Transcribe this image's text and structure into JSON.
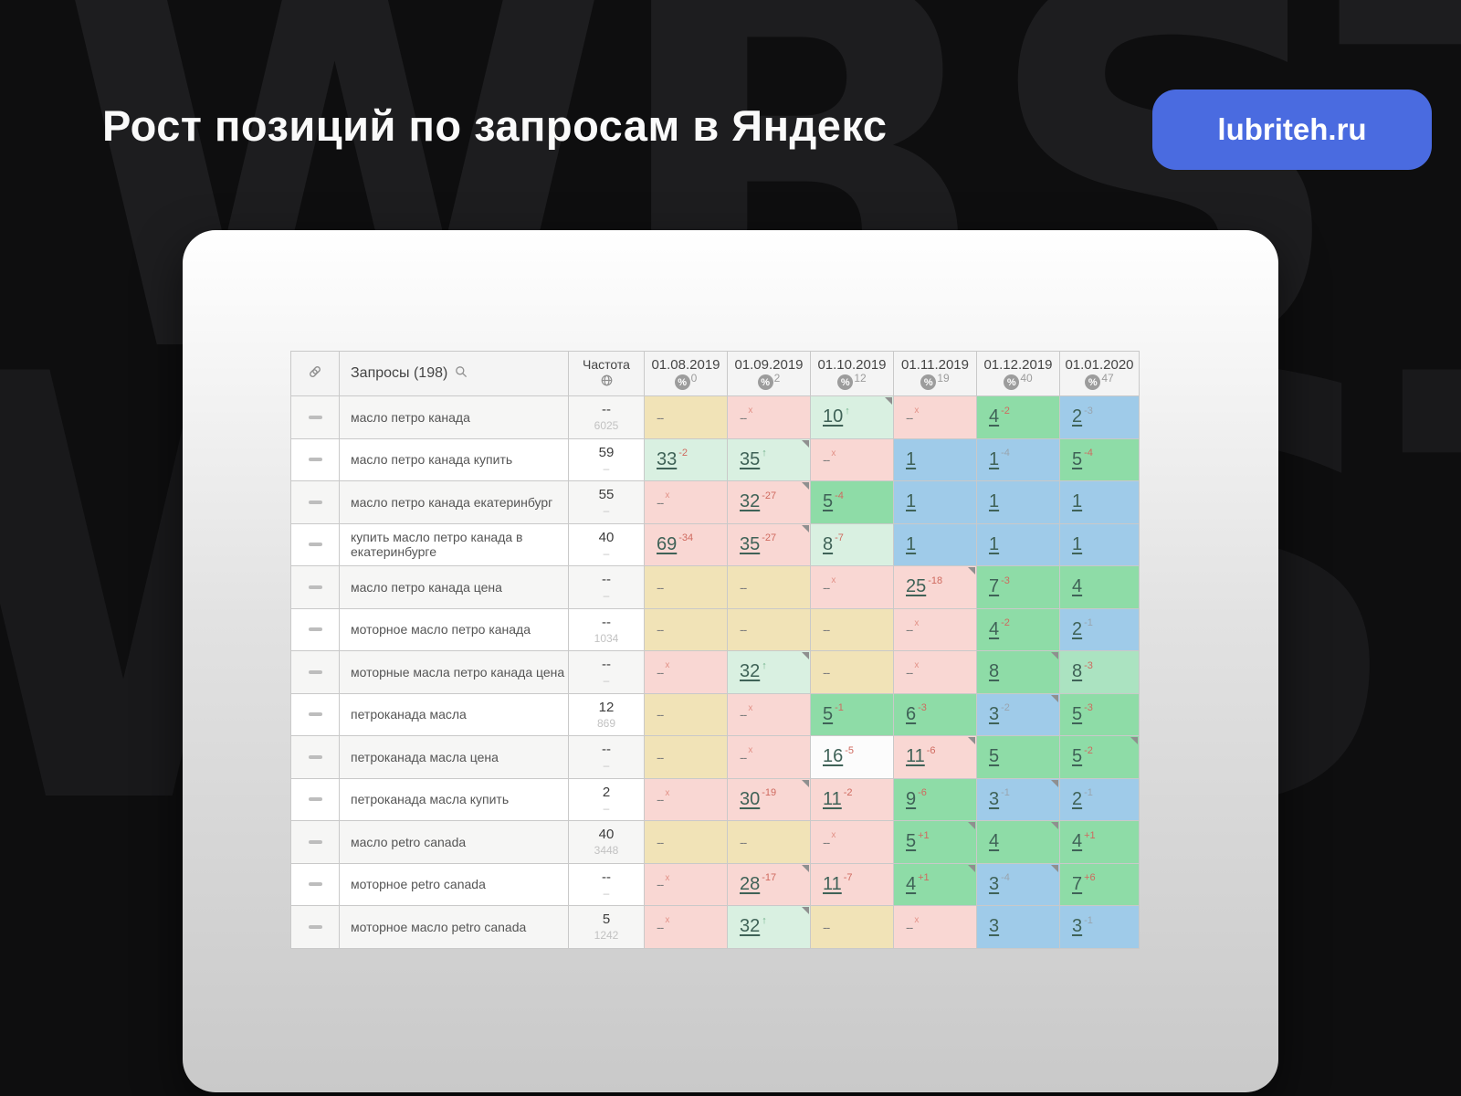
{
  "title": "Рост позиций по запросам в Яндекс",
  "badge": {
    "label": "lubriteh.ru",
    "color": "#4a6be0"
  },
  "watermark": {
    "line1": "WBSTR",
    "line2": "WBSTR"
  },
  "cell_colors": {
    "yellow": "#f1e3b7",
    "pink": "#f9d7d3",
    "lightgreen": "#d9f0e1",
    "green": "#8edca7",
    "green2": "#abe3c1",
    "blue": "#9fcbe9",
    "white": "#fcfcfc"
  },
  "table": {
    "queries_header": "Запросы (198)",
    "frequency_header": "Частота",
    "date_columns": [
      {
        "date": "01.08.2019",
        "percent": "0"
      },
      {
        "date": "01.09.2019",
        "percent": "2"
      },
      {
        "date": "01.10.2019",
        "percent": "12"
      },
      {
        "date": "01.11.2019",
        "percent": "19"
      },
      {
        "date": "01.12.2019",
        "percent": "40"
      },
      {
        "date": "01.01.2020",
        "percent": "47"
      }
    ],
    "rows": [
      {
        "query": "масло петро канада",
        "freq_top": "--",
        "freq_bottom": "6025",
        "cells": [
          {
            "v": "--",
            "bg": "yellow"
          },
          {
            "v": "--",
            "sup": "x",
            "bg": "pink"
          },
          {
            "v": "10",
            "sup": "↑",
            "supc": "green",
            "bg": "lightgreen",
            "link": true,
            "marker": true
          },
          {
            "v": "--",
            "sup": "x",
            "bg": "pink"
          },
          {
            "v": "4",
            "sup": "-2",
            "supc": "red",
            "bg": "green",
            "link": true
          },
          {
            "v": "2",
            "sup": "-3",
            "supc": "grey",
            "bg": "blue",
            "link": true
          }
        ]
      },
      {
        "query": "масло петро канада купить",
        "freq_top": "59",
        "freq_bottom": "–",
        "cells": [
          {
            "v": "33",
            "sup": "-2",
            "supc": "red",
            "bg": "lightgreen",
            "link": true
          },
          {
            "v": "35",
            "sup": "↑",
            "supc": "green",
            "bg": "lightgreen",
            "link": true,
            "marker": true
          },
          {
            "v": "--",
            "sup": "x",
            "bg": "pink"
          },
          {
            "v": "1",
            "bg": "blue",
            "link": true
          },
          {
            "v": "1",
            "sup": "-4",
            "supc": "grey",
            "bg": "blue",
            "link": true
          },
          {
            "v": "5",
            "sup": "-4",
            "supc": "red",
            "bg": "green",
            "link": true
          }
        ]
      },
      {
        "query": "масло петро канада екатеринбург",
        "freq_top": "55",
        "freq_bottom": "–",
        "cells": [
          {
            "v": "--",
            "sup": "x",
            "bg": "pink"
          },
          {
            "v": "32",
            "sup": "-27",
            "supc": "red",
            "bg": "pink",
            "link": true,
            "marker": true
          },
          {
            "v": "5",
            "sup": "-4",
            "supc": "red",
            "bg": "green",
            "link": true
          },
          {
            "v": "1",
            "bg": "blue",
            "link": true
          },
          {
            "v": "1",
            "bg": "blue",
            "link": true
          },
          {
            "v": "1",
            "bg": "blue",
            "link": true
          }
        ]
      },
      {
        "query": "купить масло петро канада в екатеринбурге",
        "freq_top": "40",
        "freq_bottom": "–",
        "cells": [
          {
            "v": "69",
            "sup": "-34",
            "supc": "red",
            "bg": "pink",
            "link": true
          },
          {
            "v": "35",
            "sup": "-27",
            "supc": "red",
            "bg": "pink",
            "link": true,
            "marker": true
          },
          {
            "v": "8",
            "sup": "-7",
            "supc": "red",
            "bg": "lightgreen",
            "link": true
          },
          {
            "v": "1",
            "bg": "blue",
            "link": true
          },
          {
            "v": "1",
            "bg": "blue",
            "link": true
          },
          {
            "v": "1",
            "bg": "blue",
            "link": true
          }
        ]
      },
      {
        "query": "масло петро канада цена",
        "freq_top": "--",
        "freq_bottom": "–",
        "cells": [
          {
            "v": "--",
            "bg": "yellow"
          },
          {
            "v": "--",
            "bg": "yellow"
          },
          {
            "v": "--",
            "sup": "x",
            "bg": "pink"
          },
          {
            "v": "25",
            "sup": "-18",
            "supc": "red",
            "bg": "pink",
            "link": true,
            "marker": true
          },
          {
            "v": "7",
            "sup": "-3",
            "supc": "red",
            "bg": "green",
            "link": true
          },
          {
            "v": "4",
            "bg": "green",
            "link": true
          }
        ]
      },
      {
        "query": "моторное масло петро канада",
        "freq_top": "--",
        "freq_bottom": "1034",
        "cells": [
          {
            "v": "--",
            "bg": "yellow"
          },
          {
            "v": "--",
            "bg": "yellow"
          },
          {
            "v": "--",
            "bg": "yellow"
          },
          {
            "v": "--",
            "sup": "x",
            "bg": "pink"
          },
          {
            "v": "4",
            "sup": "-2",
            "supc": "red",
            "bg": "green",
            "link": true
          },
          {
            "v": "2",
            "sup": "-1",
            "supc": "grey",
            "bg": "blue",
            "link": true
          }
        ]
      },
      {
        "query": "моторные масла петро канада цена",
        "freq_top": "--",
        "freq_bottom": "–",
        "cells": [
          {
            "v": "--",
            "sup": "x",
            "bg": "pink"
          },
          {
            "v": "32",
            "sup": "↑",
            "supc": "green",
            "bg": "lightgreen",
            "link": true,
            "marker": true
          },
          {
            "v": "--",
            "bg": "yellow"
          },
          {
            "v": "--",
            "sup": "x",
            "bg": "pink"
          },
          {
            "v": "8",
            "bg": "green",
            "link": true,
            "marker": true
          },
          {
            "v": "8",
            "sup": "-3",
            "supc": "red",
            "bg": "green2",
            "link": true
          }
        ]
      },
      {
        "query": "петроканада масла",
        "freq_top": "12",
        "freq_bottom": "869",
        "cells": [
          {
            "v": "--",
            "bg": "yellow"
          },
          {
            "v": "--",
            "sup": "x",
            "bg": "pink"
          },
          {
            "v": "5",
            "sup": "-1",
            "supc": "red",
            "bg": "green",
            "link": true
          },
          {
            "v": "6",
            "sup": "-3",
            "supc": "red",
            "bg": "green",
            "link": true
          },
          {
            "v": "3",
            "sup": "-2",
            "supc": "grey",
            "bg": "blue",
            "link": true,
            "marker": true
          },
          {
            "v": "5",
            "sup": "-3",
            "supc": "red",
            "bg": "green",
            "link": true
          }
        ]
      },
      {
        "query": "петроканада масла цена",
        "freq_top": "--",
        "freq_bottom": "–",
        "cells": [
          {
            "v": "--",
            "bg": "yellow"
          },
          {
            "v": "--",
            "sup": "x",
            "bg": "pink"
          },
          {
            "v": "16",
            "sup": "-5",
            "supc": "red",
            "bg": "white",
            "link": true
          },
          {
            "v": "11",
            "sup": "-6",
            "supc": "red",
            "bg": "pink",
            "link": true,
            "marker": true
          },
          {
            "v": "5",
            "bg": "green",
            "link": true
          },
          {
            "v": "5",
            "sup": "-2",
            "supc": "red",
            "bg": "green",
            "link": true,
            "marker": true
          }
        ]
      },
      {
        "query": "петроканада масла купить",
        "freq_top": "2",
        "freq_bottom": "–",
        "cells": [
          {
            "v": "--",
            "sup": "x",
            "bg": "pink"
          },
          {
            "v": "30",
            "sup": "-19",
            "supc": "red",
            "bg": "pink",
            "link": true,
            "marker": true
          },
          {
            "v": "11",
            "sup": "-2",
            "supc": "red",
            "bg": "pink",
            "link": true
          },
          {
            "v": "9",
            "sup": "-6",
            "supc": "red",
            "bg": "green",
            "link": true
          },
          {
            "v": "3",
            "sup": "-1",
            "supc": "grey",
            "bg": "blue",
            "link": true,
            "marker": true
          },
          {
            "v": "2",
            "sup": "-1",
            "supc": "grey",
            "bg": "blue",
            "link": true
          }
        ]
      },
      {
        "query": "масло petro canada",
        "freq_top": "40",
        "freq_bottom": "3448",
        "cells": [
          {
            "v": "--",
            "bg": "yellow"
          },
          {
            "v": "--",
            "bg": "yellow"
          },
          {
            "v": "--",
            "sup": "x",
            "bg": "pink"
          },
          {
            "v": "5",
            "sup": "+1",
            "supc": "red",
            "bg": "green",
            "link": true,
            "marker": true
          },
          {
            "v": "4",
            "bg": "green",
            "link": true,
            "marker": true
          },
          {
            "v": "4",
            "sup": "+1",
            "supc": "red",
            "bg": "green",
            "link": true
          }
        ]
      },
      {
        "query": "моторное petro canada",
        "freq_top": "--",
        "freq_bottom": "–",
        "cells": [
          {
            "v": "--",
            "sup": "x",
            "bg": "pink"
          },
          {
            "v": "28",
            "sup": "-17",
            "supc": "red",
            "bg": "pink",
            "link": true,
            "marker": true
          },
          {
            "v": "11",
            "sup": "-7",
            "supc": "red",
            "bg": "pink",
            "link": true
          },
          {
            "v": "4",
            "sup": "+1",
            "supc": "red",
            "bg": "green",
            "link": true,
            "marker": true
          },
          {
            "v": "3",
            "sup": "-4",
            "supc": "grey",
            "bg": "blue",
            "link": true,
            "marker": true
          },
          {
            "v": "7",
            "sup": "+6",
            "supc": "red",
            "bg": "green",
            "link": true
          }
        ]
      },
      {
        "query": "моторное масло petro canada",
        "freq_top": "5",
        "freq_bottom": "1242",
        "cells": [
          {
            "v": "--",
            "sup": "x",
            "bg": "pink"
          },
          {
            "v": "32",
            "sup": "↑",
            "supc": "green",
            "bg": "lightgreen",
            "link": true,
            "marker": true
          },
          {
            "v": "--",
            "bg": "yellow"
          },
          {
            "v": "--",
            "sup": "x",
            "bg": "pink"
          },
          {
            "v": "3",
            "bg": "blue",
            "link": true
          },
          {
            "v": "3",
            "sup": "-1",
            "supc": "grey",
            "bg": "blue",
            "link": true
          }
        ]
      }
    ]
  }
}
